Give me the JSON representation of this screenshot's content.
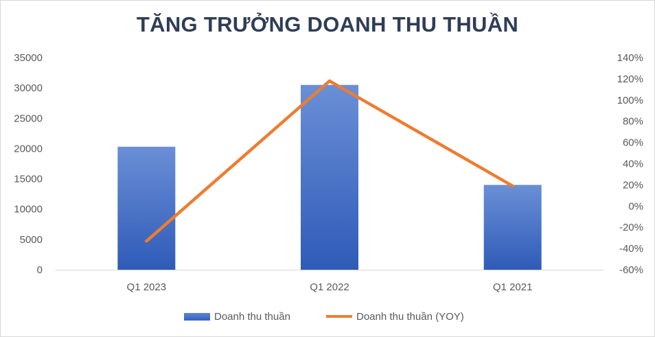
{
  "chart_data": {
    "type": "bar",
    "title": "TĂNG TRƯỞNG DOANH THU THUẦN",
    "categories": [
      "Q1 2023",
      "Q1 2022",
      "Q1 2021"
    ],
    "series": [
      {
        "name": "Doanh thu thuần",
        "type": "bar",
        "axis": "left",
        "values": [
          20300,
          30500,
          14000
        ],
        "color": "#4472c4"
      },
      {
        "name": "Doanh thu thuần (YOY)",
        "type": "line",
        "axis": "right",
        "values": [
          -33,
          118,
          19
        ],
        "color": "#ed7d31"
      }
    ],
    "y_left": {
      "ylim": [
        0,
        35000
      ],
      "ticks": [
        "0",
        "5000",
        "10000",
        "15000",
        "20000",
        "25000",
        "30000",
        "35000"
      ]
    },
    "y_right": {
      "ylim": [
        -60,
        140
      ],
      "ticks": [
        "-60%",
        "-40%",
        "-20%",
        "0%",
        "20%",
        "40%",
        "60%",
        "80%",
        "100%",
        "120%",
        "140%"
      ]
    },
    "legend_position": "bottom",
    "grid": false
  }
}
